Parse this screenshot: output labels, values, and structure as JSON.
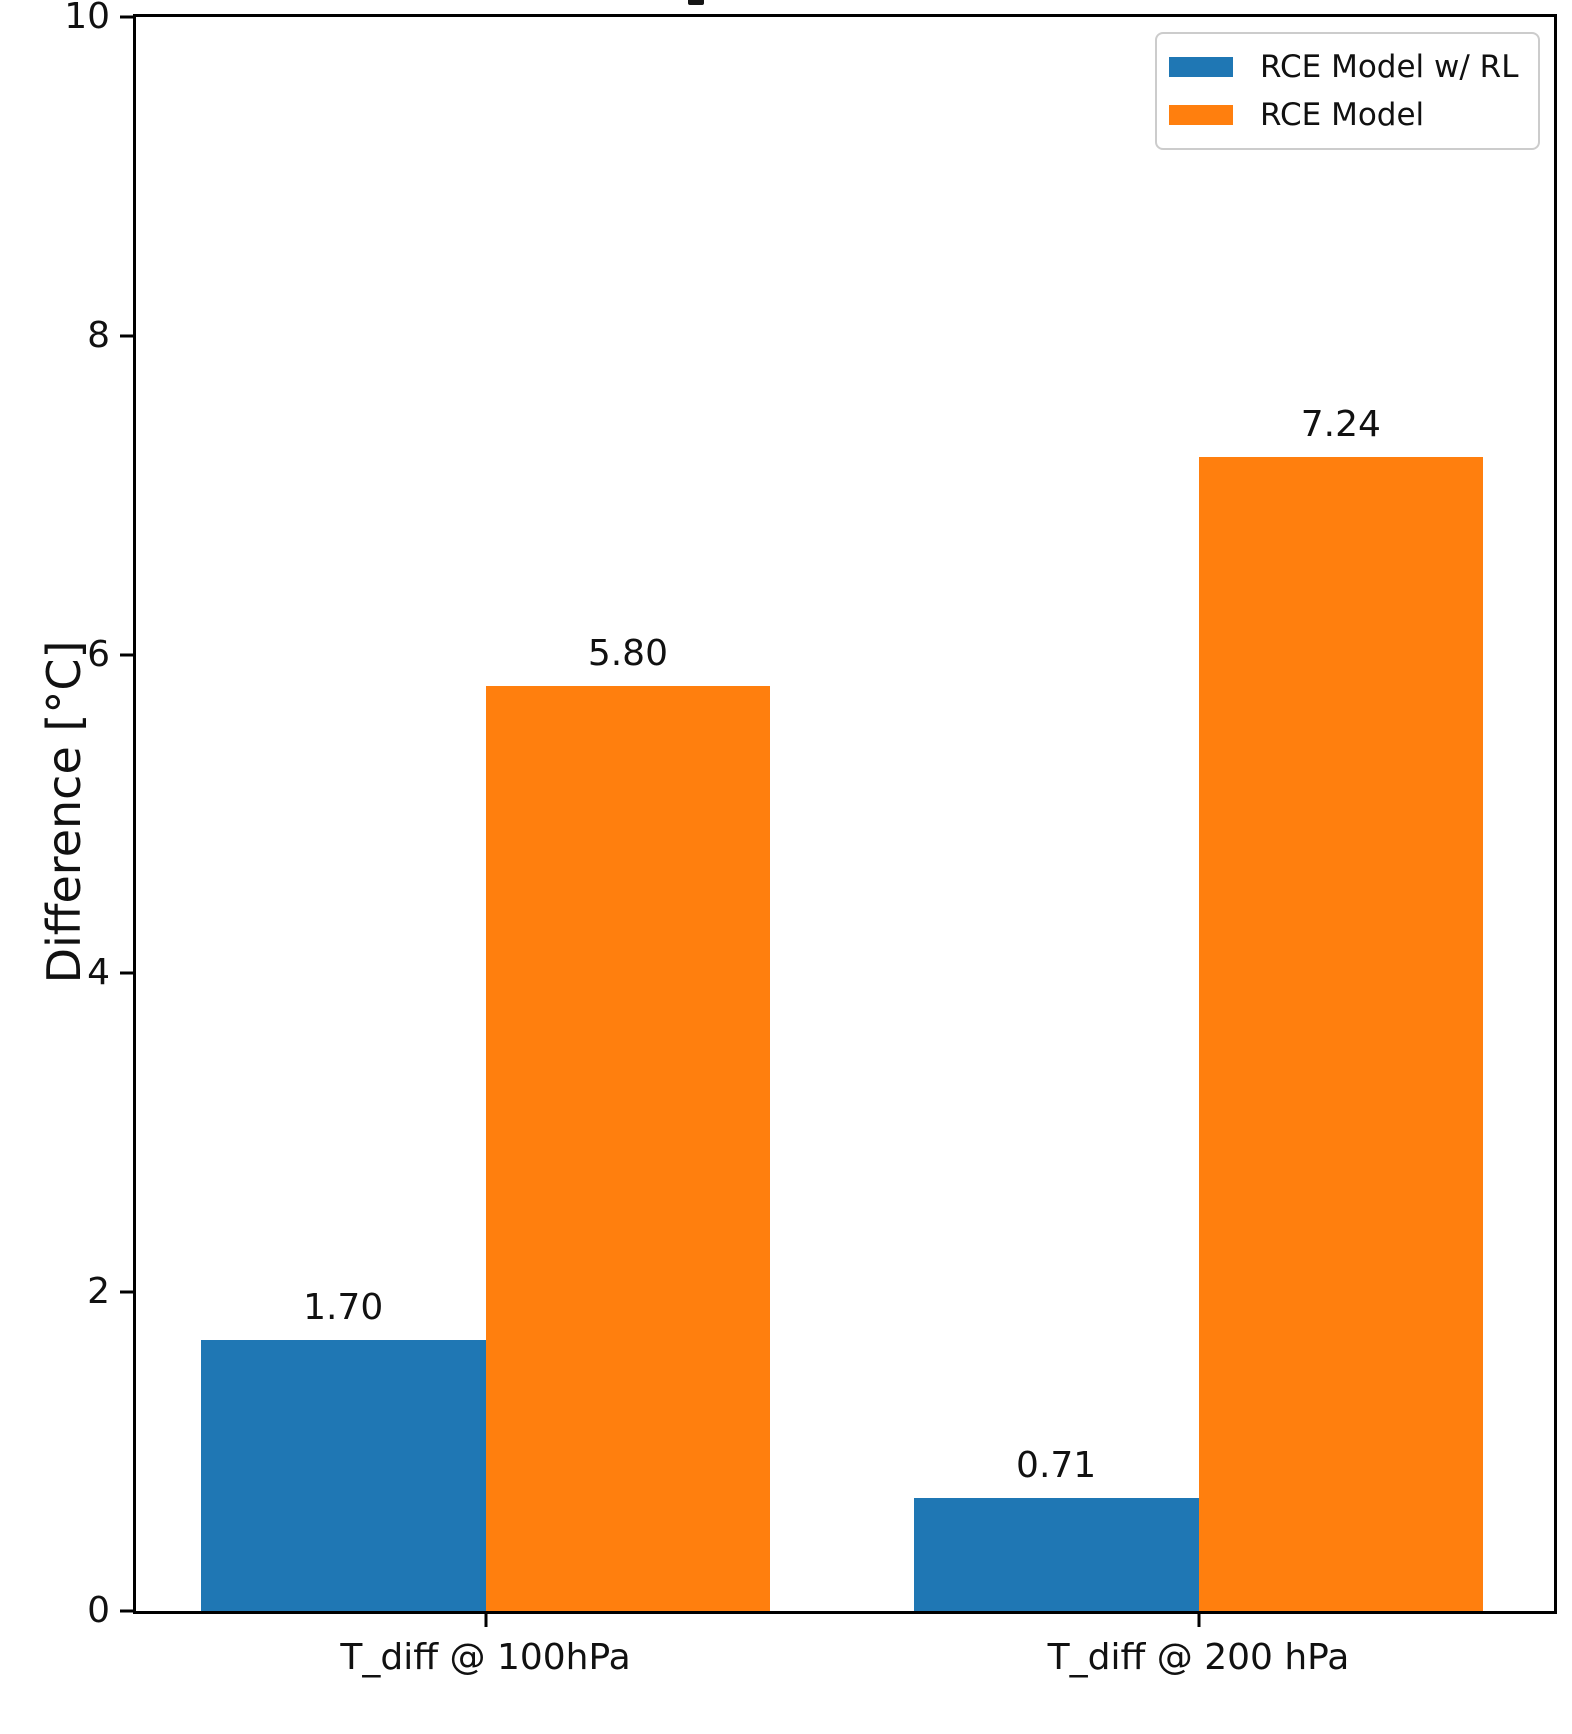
{
  "chart_data": {
    "type": "bar",
    "categories": [
      "T_diff @ 100hPa",
      "T_diff @ 200 hPa"
    ],
    "series": [
      {
        "name": "RCE Model w/ RL",
        "color": "#1f77b4",
        "values": [
          1.7,
          0.71
        ],
        "value_labels": [
          "1.70",
          "0.71"
        ]
      },
      {
        "name": "RCE Model",
        "color": "#ff7f0e",
        "values": [
          5.8,
          7.24
        ],
        "value_labels": [
          "5.80",
          "7.24"
        ]
      }
    ],
    "xlabel": "",
    "ylabel": "Difference [°C]",
    "ylim": [
      0,
      10
    ],
    "ytick_labels": [
      "0",
      "2",
      "4",
      "6",
      "8",
      "10"
    ],
    "grid": false,
    "legend": {
      "position": "upper right"
    },
    "axis_color": "#000000",
    "text_color": "#111111"
  }
}
